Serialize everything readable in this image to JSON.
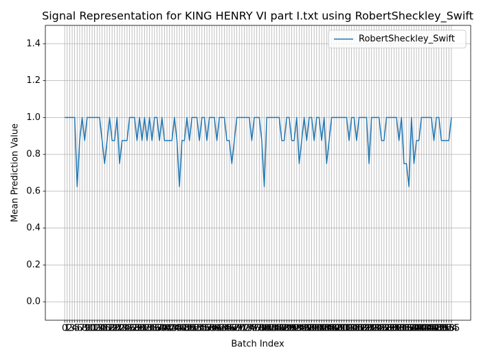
{
  "chart_data": {
    "type": "line",
    "title": "Signal Representation for KING HENRY VI part I.txt using RobertSheckley_Swift",
    "x_label": "Batch Index",
    "y_label": "Mean Prediction Value",
    "x": [
      0,
      1,
      2,
      3,
      4,
      5,
      6,
      7,
      8,
      9,
      10,
      11,
      12,
      13,
      14,
      15,
      16,
      17,
      18,
      19,
      20,
      21,
      22,
      23,
      24,
      25,
      26,
      27,
      28,
      29,
      30,
      31,
      32,
      33,
      34,
      35,
      36,
      37,
      38,
      39,
      40,
      41,
      42,
      43,
      44,
      45,
      46,
      47,
      48,
      49,
      50,
      51,
      52,
      53,
      54,
      55,
      56,
      57,
      58,
      59,
      60,
      61,
      62,
      63,
      64,
      65,
      66,
      67,
      68,
      69,
      70,
      71,
      72,
      73,
      74,
      75,
      76,
      77,
      78,
      79,
      80,
      81,
      82,
      83,
      84,
      85,
      86,
      87,
      88,
      89,
      90,
      91,
      92,
      93,
      94,
      95,
      96,
      97,
      98,
      99,
      100,
      101,
      102,
      103,
      104,
      105,
      106,
      107,
      108,
      109,
      110,
      111,
      112,
      113,
      114,
      115,
      116,
      117,
      118,
      119,
      120,
      121,
      122,
      123,
      124,
      125,
      126,
      127,
      128,
      129,
      130,
      131,
      132,
      133,
      134,
      135,
      136,
      137,
      138,
      139,
      140,
      141,
      142,
      143,
      144,
      145,
      146,
      147,
      148,
      149,
      150,
      151,
      152,
      153,
      154,
      155
    ],
    "series": [
      {
        "name": "RobertSheckley_Swift",
        "color": "#1f77b4",
        "values": [
          1,
          1,
          1,
          1,
          1,
          0.625,
          0.875,
          1,
          0.875,
          1,
          1,
          1,
          1,
          1,
          1,
          0.875,
          0.75,
          0.875,
          1,
          0.875,
          0.875,
          1,
          0.75,
          0.875,
          0.875,
          0.875,
          1,
          1,
          1,
          0.875,
          1,
          0.875,
          1,
          0.875,
          1,
          0.875,
          1,
          1,
          0.875,
          1,
          0.875,
          0.875,
          0.875,
          0.875,
          1,
          0.875,
          0.625,
          0.875,
          0.875,
          1,
          0.875,
          1,
          1,
          1,
          0.875,
          1,
          1,
          0.875,
          1,
          1,
          1,
          0.875,
          1,
          1,
          1,
          0.875,
          0.875,
          0.75,
          0.875,
          1,
          1,
          1,
          1,
          1,
          1,
          0.875,
          1,
          1,
          1,
          0.875,
          0.625,
          1,
          1,
          1,
          1,
          1,
          1,
          0.875,
          0.875,
          1,
          1,
          0.875,
          0.875,
          1,
          0.75,
          0.875,
          1,
          0.875,
          1,
          1,
          0.875,
          1,
          1,
          0.875,
          1,
          0.75,
          0.875,
          1,
          1,
          1,
          1,
          1,
          1,
          1,
          0.875,
          1,
          1,
          0.875,
          1,
          1,
          1,
          1,
          0.75,
          1,
          1,
          1,
          1,
          0.875,
          0.875,
          1,
          1,
          1,
          1,
          1,
          0.875,
          1,
          0.75,
          0.75,
          0.625,
          1,
          0.75,
          0.875,
          0.875,
          1,
          1,
          1,
          1,
          1,
          0.875,
          1,
          1,
          0.875,
          0.875,
          0.875,
          0.875,
          1
        ]
      }
    ],
    "xlim": [
      -7.75,
      162.75
    ],
    "xticks": [
      0,
      1,
      2,
      3,
      4,
      5,
      6,
      7,
      8,
      9,
      10,
      11,
      12,
      13,
      14,
      15,
      16,
      17,
      18,
      19,
      20,
      21,
      22,
      23,
      24,
      25,
      26,
      27,
      28,
      29,
      30,
      31,
      32,
      33,
      34,
      35,
      36,
      37,
      38,
      39,
      40,
      41,
      42,
      43,
      44,
      45,
      46,
      47,
      48,
      49,
      50,
      51,
      52,
      53,
      54,
      55,
      56,
      57,
      58,
      59,
      60,
      61,
      62,
      63,
      64,
      65,
      66,
      67,
      68,
      69,
      70,
      71,
      72,
      73,
      74,
      75,
      76,
      77,
      78,
      79,
      80,
      81,
      82,
      83,
      84,
      85,
      86,
      87,
      88,
      89,
      90,
      91,
      92,
      93,
      94,
      95,
      96,
      97,
      98,
      99,
      100,
      101,
      102,
      103,
      104,
      105,
      106,
      107,
      108,
      109,
      110,
      111,
      112,
      113,
      114,
      115,
      116,
      117,
      118,
      119,
      120,
      121,
      122,
      123,
      124,
      125,
      126,
      127,
      128,
      129,
      130,
      131,
      132,
      133,
      134,
      135,
      136,
      137,
      138,
      139,
      140,
      141,
      142,
      143,
      144,
      145,
      146,
      147,
      148,
      149,
      150,
      151,
      152,
      153,
      154,
      155
    ],
    "ylim": [
      -0.1,
      1.5
    ],
    "yticks": [
      {
        "value": 0,
        "label": "0.0"
      },
      0.2,
      0.4,
      0.6,
      0.8,
      {
        "value": 1,
        "label": "1.0"
      },
      1.2,
      1.4
    ],
    "grid": true,
    "legend": "upper right"
  }
}
